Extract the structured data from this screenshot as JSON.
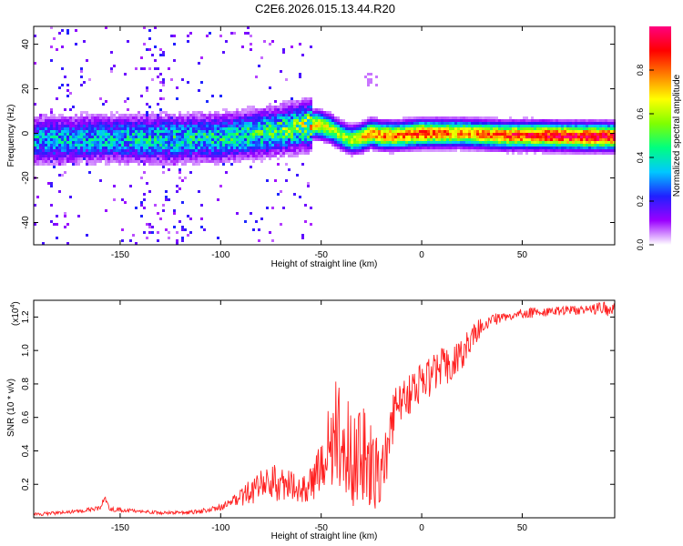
{
  "title": "C2E6.2026.015.13.44.R20",
  "chart_data": [
    {
      "type": "heatmap",
      "name": "spectrogram",
      "xlabel": "Height of straight line (km)",
      "ylabel": "Frequency (Hz)",
      "xlim": [
        -193,
        96
      ],
      "ylim": [
        -50,
        48
      ],
      "xticks": [
        -150,
        -100,
        -50,
        0,
        50
      ],
      "xtick_labels": [
        "-150",
        "-100",
        "-50",
        "0",
        "50"
      ],
      "yticks": [
        -40,
        -20,
        0,
        20,
        40
      ],
      "ytick_labels": [
        "-40",
        "-20",
        "0",
        "20",
        "40"
      ],
      "ridge": {
        "x": [
          -193,
          -160,
          -130,
          -100,
          -80,
          -60,
          -52,
          -45,
          -40,
          -35,
          -30,
          -25,
          -20,
          -10,
          0,
          10,
          20,
          40,
          60,
          80,
          96
        ],
        "freq": [
          -3,
          -2.5,
          -2.5,
          -2,
          0,
          3,
          4,
          2,
          -1,
          -3,
          -2,
          0,
          -1,
          -1,
          0,
          0,
          0,
          -1,
          -1,
          -1.5,
          -1.5
        ],
        "peak_amplitude": [
          0.35,
          0.35,
          0.4,
          0.4,
          0.45,
          0.55,
          0.7,
          0.6,
          0.55,
          0.6,
          0.7,
          0.75,
          0.8,
          0.8,
          0.85,
          0.8,
          0.75,
          0.85,
          0.9,
          0.95,
          0.95
        ]
      },
      "colorbar": {
        "label": "Normalized spectral amplitude",
        "range": [
          0,
          1
        ],
        "ticks": [
          0.0,
          0.2,
          0.4,
          0.6,
          0.8
        ],
        "tick_labels": [
          "0.0",
          "0.2",
          "0.4",
          "0.6",
          "0.8"
        ],
        "colormap": [
          "#ffffff",
          "#9b00ff",
          "#2020ff",
          "#00c8ff",
          "#00ff80",
          "#80ff00",
          "#ffff00",
          "#ff8000",
          "#ff0000",
          "#ff0080"
        ]
      }
    },
    {
      "type": "line",
      "name": "snr",
      "xlabel": "Height of straight line (km)",
      "ylabel": "SNR (10 * v/v)",
      "scale_label": "(x10",
      "scale_exponent": "4",
      "scale_close": ")",
      "xlim": [
        -193,
        96
      ],
      "ylim": [
        0,
        1.3
      ],
      "xticks": [
        -150,
        -100,
        -50,
        0,
        50
      ],
      "xtick_labels": [
        "-150",
        "-100",
        "-50",
        "0",
        "50"
      ],
      "yticks": [
        0.2,
        0.4,
        0.6,
        0.8,
        1.0,
        1.2
      ],
      "ytick_labels": [
        "0.2",
        "0.4",
        "0.6",
        "0.8",
        "1.0",
        "1.2"
      ],
      "series": [
        {
          "name": "SNR",
          "color": "#ff2020",
          "x": [
            -193,
            -180,
            -170,
            -160,
            -158,
            -155,
            -140,
            -130,
            -120,
            -110,
            -100,
            -95,
            -90,
            -85,
            -80,
            -75,
            -70,
            -65,
            -60,
            -55,
            -50,
            -45,
            -42,
            -38,
            -35,
            -30,
            -25,
            -20,
            -15,
            -10,
            -5,
            0,
            5,
            10,
            15,
            20,
            25,
            30,
            35,
            40,
            50,
            60,
            70,
            80,
            90,
            96
          ],
          "y": [
            0.02,
            0.03,
            0.04,
            0.06,
            0.12,
            0.05,
            0.04,
            0.03,
            0.03,
            0.04,
            0.06,
            0.09,
            0.12,
            0.16,
            0.2,
            0.22,
            0.2,
            0.19,
            0.16,
            0.2,
            0.3,
            0.45,
            0.55,
            0.5,
            0.35,
            0.4,
            0.3,
            0.2,
            0.6,
            0.7,
            0.75,
            0.8,
            0.85,
            0.9,
            0.92,
            0.98,
            1.08,
            1.15,
            1.18,
            1.2,
            1.22,
            1.23,
            1.24,
            1.24,
            1.25,
            1.24
          ],
          "noise": [
            0.01,
            0.01,
            0.01,
            0.015,
            0.02,
            0.015,
            0.01,
            0.01,
            0.01,
            0.015,
            0.02,
            0.03,
            0.05,
            0.08,
            0.1,
            0.12,
            0.1,
            0.09,
            0.07,
            0.1,
            0.18,
            0.28,
            0.35,
            0.35,
            0.3,
            0.3,
            0.3,
            0.2,
            0.18,
            0.12,
            0.12,
            0.12,
            0.12,
            0.12,
            0.1,
            0.1,
            0.08,
            0.05,
            0.04,
            0.03,
            0.03,
            0.03,
            0.03,
            0.03,
            0.04,
            0.04
          ]
        }
      ]
    }
  ]
}
